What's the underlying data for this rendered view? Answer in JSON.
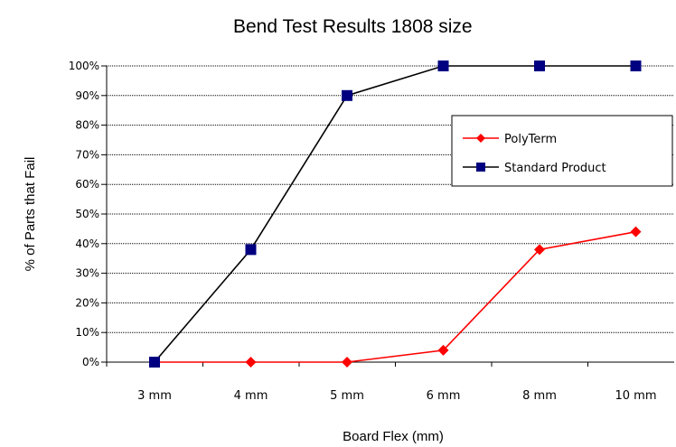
{
  "chart_data": {
    "type": "line",
    "title": "Bend Test Results 1808 size",
    "xlabel": "Board Flex (mm)",
    "ylabel": "% of Parts that Fail",
    "categories": [
      "3 mm",
      "4 mm",
      "5 mm",
      "6 mm",
      "8 mm",
      "10 mm"
    ],
    "y_ticks": [
      "0%",
      "10%",
      "20%",
      "30%",
      "40%",
      "50%",
      "60%",
      "70%",
      "80%",
      "90%",
      "100%"
    ],
    "ylim": [
      0,
      100
    ],
    "grid": true,
    "legend_position": "right",
    "series": [
      {
        "name": "PolyTerm",
        "values": [
          0,
          0,
          0,
          4,
          38,
          44
        ],
        "color": "#ff0000",
        "marker": "diamond"
      },
      {
        "name": "Standard Product",
        "values": [
          0,
          38,
          90,
          100,
          100,
          100
        ],
        "color": "#000000",
        "marker_color": "#000080",
        "marker": "square"
      }
    ]
  }
}
